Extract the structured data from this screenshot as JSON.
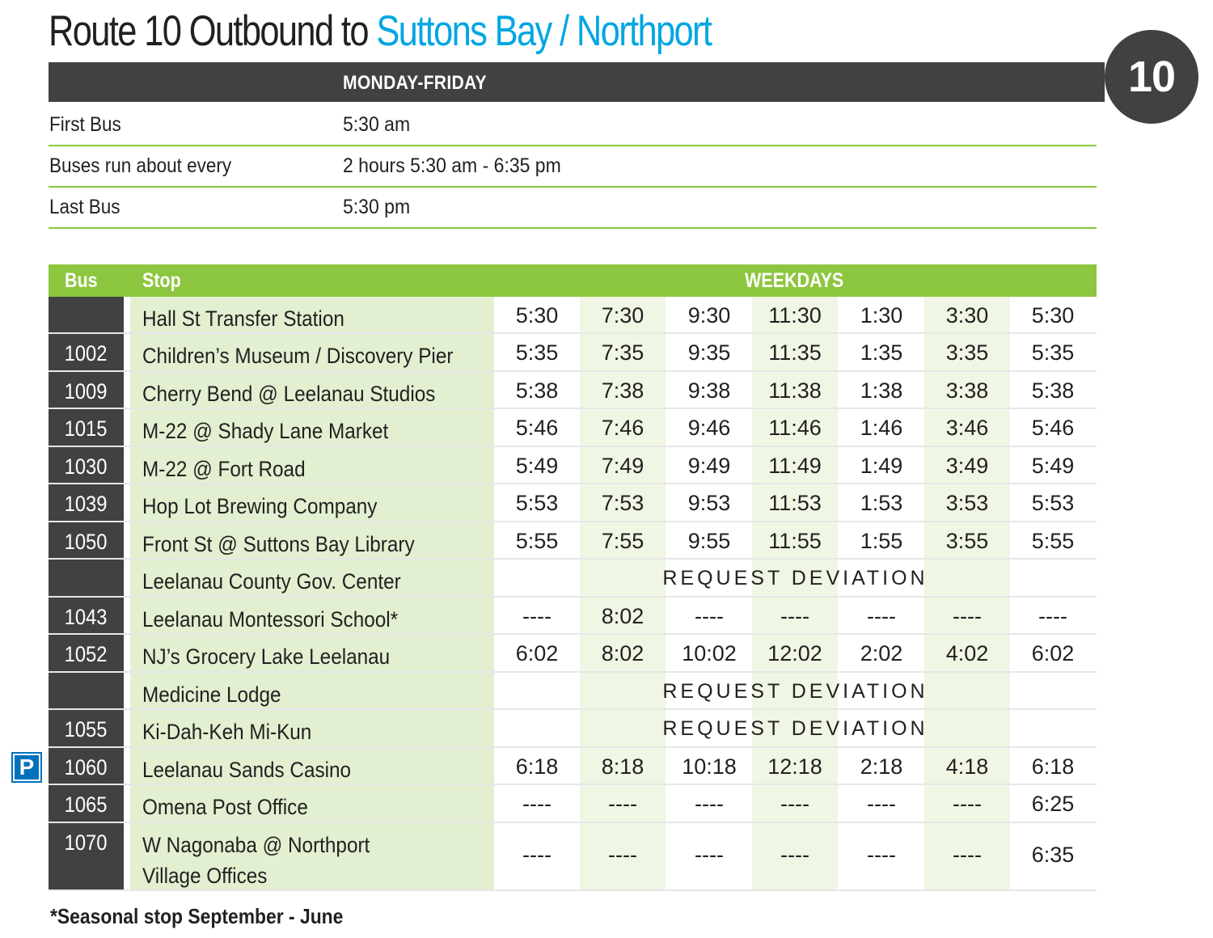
{
  "title": {
    "prefix": "Route 10 Outbound to ",
    "destination": "Suttons Bay / Northport"
  },
  "route_number": "10",
  "summary": {
    "header": "MONDAY-FRIDAY",
    "rows": [
      {
        "label": "First Bus",
        "value": "5:30 am"
      },
      {
        "label": "Buses run about every",
        "value": "2 hours 5:30 am - 6:35 pm"
      },
      {
        "label": "Last Bus",
        "value": "5:30 pm"
      }
    ]
  },
  "schedule": {
    "headers": {
      "bus": "Bus",
      "stop": "Stop",
      "weekdays": "WEEKDAYS"
    },
    "rows": [
      {
        "bus": "",
        "stop": "Hall St Transfer Station",
        "times": [
          "5:30",
          "7:30",
          "9:30",
          "11:30",
          "1:30",
          "3:30",
          "5:30"
        ]
      },
      {
        "bus": "1002",
        "stop": "Children’s Museum / Discovery Pier",
        "times": [
          "5:35",
          "7:35",
          "9:35",
          "11:35",
          "1:35",
          "3:35",
          "5:35"
        ]
      },
      {
        "bus": "1009",
        "stop": "Cherry Bend @ Leelanau Studios",
        "times": [
          "5:38",
          "7:38",
          "9:38",
          "11:38",
          "1:38",
          "3:38",
          "5:38"
        ]
      },
      {
        "bus": "1015",
        "stop": "M-22 @ Shady Lane Market",
        "times": [
          "5:46",
          "7:46",
          "9:46",
          "11:46",
          "1:46",
          "3:46",
          "5:46"
        ]
      },
      {
        "bus": "1030",
        "stop": "M-22 @ Fort Road",
        "times": [
          "5:49",
          "7:49",
          "9:49",
          "11:49",
          "1:49",
          "3:49",
          "5:49"
        ]
      },
      {
        "bus": "1039",
        "stop": "Hop Lot Brewing Company",
        "times": [
          "5:53",
          "7:53",
          "9:53",
          "11:53",
          "1:53",
          "3:53",
          "5:53"
        ]
      },
      {
        "bus": "1050",
        "stop": "Front St @ Suttons Bay Library",
        "times": [
          "5:55",
          "7:55",
          "9:55",
          "11:55",
          "1:55",
          "3:55",
          "5:55"
        ]
      },
      {
        "bus": "",
        "stop": "Leelanau County Gov. Center",
        "note": "REQUEST DEVIATION"
      },
      {
        "bus": "1043",
        "stop": "Leelanau Montessori School*",
        "times": [
          "----",
          "8:02",
          "----",
          "----",
          "----",
          "----",
          "----"
        ]
      },
      {
        "bus": "1052",
        "stop": "NJ’s Grocery Lake Leelanau",
        "times": [
          "6:02",
          "8:02",
          "10:02",
          "12:02",
          "2:02",
          "4:02",
          "6:02"
        ]
      },
      {
        "bus": "",
        "stop": "Medicine Lodge",
        "note": "REQUEST DEVIATION"
      },
      {
        "bus": "1055",
        "stop": "Ki-Dah-Keh Mi-Kun",
        "note": "REQUEST DEVIATION"
      },
      {
        "bus": "1060",
        "stop": "Leelanau Sands Casino",
        "times": [
          "6:18",
          "8:18",
          "10:18",
          "12:18",
          "2:18",
          "4:18",
          "6:18"
        ],
        "parking": "P"
      },
      {
        "bus": "1065",
        "stop": "Omena Post Office",
        "times": [
          "----",
          "----",
          "----",
          "----",
          "----",
          "----",
          "6:25"
        ]
      },
      {
        "bus": "1070",
        "stop": "W Nagonaba @ Northport Village Offices",
        "times": [
          "----",
          "----",
          "----",
          "----",
          "----",
          "----",
          "6:35"
        ]
      }
    ]
  },
  "footnote": "*Seasonal stop September - June",
  "colors": {
    "accent_blue": "#00a6e2",
    "header_green": "#8dc63f",
    "dark_gray": "#414042",
    "stop_column_tint": "#e2efd0",
    "time_column_tint": "#eff6e4",
    "parking_blue": "#0072bc"
  }
}
